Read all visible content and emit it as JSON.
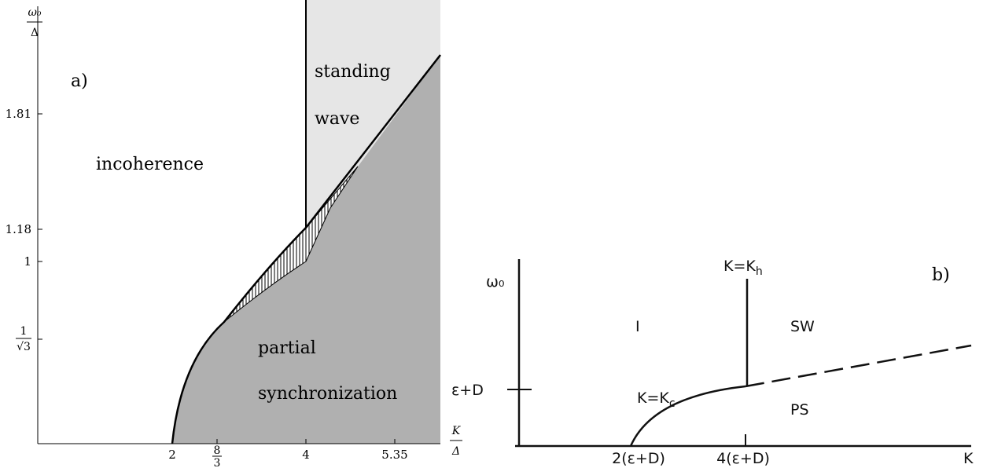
{
  "panel_a": {
    "label": "a)",
    "y_axis_label": {
      "numerator": "ω₀",
      "denominator": "Δ"
    },
    "x_axis_label": {
      "numerator": "K",
      "denominator": "Δ"
    },
    "y_ticks": [
      "1.81",
      "1.18",
      "1",
      {
        "numerator": "1",
        "denominator": "√3"
      }
    ],
    "x_ticks": [
      "2",
      {
        "numerator": "8",
        "denominator": "3"
      },
      "4",
      "5.35"
    ],
    "regions": {
      "incoherence": "incoherence",
      "standing_wave": [
        "standing",
        "wave"
      ],
      "partial_synchronization": [
        "partial",
        "synchronization"
      ]
    }
  },
  "panel_b": {
    "label": "b)",
    "y_axis_label": "ω₀",
    "x_axis_label": "K",
    "y_tick": "ε+D",
    "x_ticks": [
      "2(ε+D)",
      "4(ε+D)"
    ],
    "lines": {
      "kh": {
        "text": "K=K",
        "subscript": "h"
      },
      "kc": {
        "text": "K=K",
        "subscript": "c"
      }
    },
    "regions": {
      "incoherence": "I",
      "standing_wave": "SW",
      "partial_synchronization": "PS"
    }
  }
}
